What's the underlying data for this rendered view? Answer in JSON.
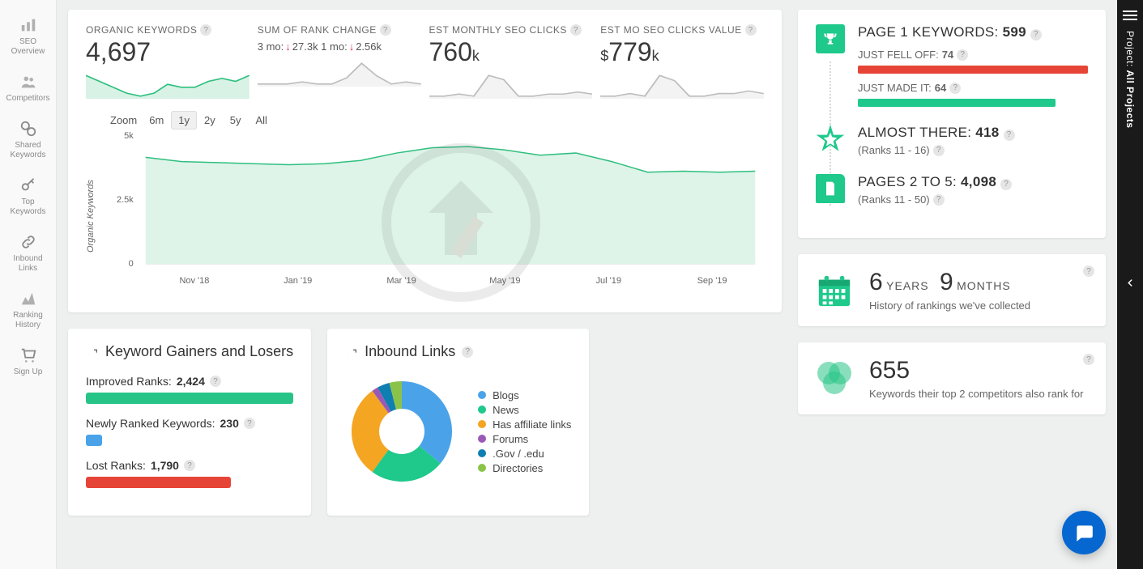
{
  "sidebar_left": {
    "items": [
      {
        "label": "SEO Overview",
        "icon": "bars"
      },
      {
        "label": "Competitors",
        "icon": "people"
      },
      {
        "label": "Shared Keywords",
        "icon": "link2"
      },
      {
        "label": "Top Keywords",
        "icon": "key"
      },
      {
        "label": "Inbound Links",
        "icon": "chain"
      },
      {
        "label": "Ranking History",
        "icon": "history"
      },
      {
        "label": "Sign Up",
        "icon": "cart"
      }
    ]
  },
  "sidebar_right": {
    "label_prefix": "Project: ",
    "label_bold": "All Projects"
  },
  "metrics": [
    {
      "label": "ORGANIC KEYWORDS",
      "value": "4,697",
      "spark": {
        "points": [
          18,
          16,
          14,
          12,
          11,
          12,
          15,
          14,
          14,
          16,
          17,
          16,
          18
        ],
        "color": "#2fbf7e",
        "fill": "#d8f2e6"
      }
    },
    {
      "label": "SUM OF RANK CHANGE",
      "sub_html": [
        "3 mo: ",
        "↓",
        "27.3k",
        " 1 mo: ",
        "↓",
        "2.56k"
      ],
      "spark": {
        "points": [
          14,
          14,
          14,
          15,
          14,
          14,
          17,
          24,
          18,
          14,
          15,
          14
        ],
        "color": "#bdbdbd",
        "fill": "#f3f3f3"
      }
    },
    {
      "label": "EST MONTHLY SEO CLICKS",
      "value_prefix": "",
      "value": "760",
      "value_suffix": "k",
      "spark": {
        "points": [
          14,
          14,
          15,
          14,
          24,
          22,
          14,
          14,
          15,
          15,
          16,
          15
        ],
        "color": "#bdbdbd",
        "fill": "#f3f3f3"
      }
    },
    {
      "label": "EST MO SEO CLICKS VALUE",
      "value_prefix": "$",
      "value": "779",
      "value_suffix": "k",
      "spark": {
        "points": [
          14,
          14,
          15,
          14,
          22,
          20,
          14,
          14,
          15,
          15,
          16,
          15
        ],
        "color": "#bdbdbd",
        "fill": "#f3f3f3"
      }
    }
  ],
  "zoom": {
    "label": "Zoom",
    "options": [
      "6m",
      "1y",
      "2y",
      "5y",
      "All"
    ],
    "active": "1y"
  },
  "main_chart": {
    "ylabel": "Organic Keywords",
    "yticks": [
      "5k",
      "2.5k",
      "0"
    ],
    "xticks": [
      "Nov '18",
      "Jan '19",
      "Mar '19",
      "May '19",
      "Jul '19",
      "Sep '19"
    ],
    "series": {
      "points": [
        5000,
        4800,
        4750,
        4700,
        4650,
        4700,
        4850,
        5200,
        5450,
        5500,
        5350,
        5100,
        5200,
        4800,
        4300,
        4350,
        4300,
        4350
      ],
      "ymax": 6000,
      "color": "#2fbf7e",
      "fill": "#def4e9"
    }
  },
  "gainers": {
    "title": "Keyword Gainers and Losers",
    "rows": [
      {
        "label": "Improved Ranks:",
        "value": "2,424",
        "color": "#28c487",
        "width_pct": 100
      },
      {
        "label": "Newly Ranked Keywords:",
        "value": "230",
        "color": "#4aa3e9",
        "width_pct": 8
      },
      {
        "label": "Lost Ranks:",
        "value": "1,790",
        "color": "#e74438",
        "width_pct": 70
      }
    ]
  },
  "inbound": {
    "title": "Inbound Links",
    "donut": {
      "slices": [
        {
          "label": "Blogs",
          "value": 36,
          "color": "#4aa3e9"
        },
        {
          "label": "News",
          "value": 24,
          "color": "#1ec98b"
        },
        {
          "label": "Has affiliate links",
          "value": 30,
          "color": "#f4a522"
        },
        {
          "label": "Forums",
          "value": 2,
          "color": "#9b59b6"
        },
        {
          "label": ".Gov / .edu",
          "value": 4,
          "color": "#0f7eb0"
        },
        {
          "label": "Directories",
          "value": 4,
          "color": "#8bc34a"
        }
      ],
      "inner_radius": 28,
      "outer_radius": 62
    }
  },
  "page1": {
    "rows": [
      {
        "badge_color": "#1ec98b",
        "icon": "trophy",
        "title_label": "PAGE 1 KEYWORDS: ",
        "title_value": "599",
        "subs": [
          {
            "label": "JUST FELL OFF:",
            "value": "74",
            "bar_color": "#e74438",
            "bar_pct": 100
          },
          {
            "label": "JUST MADE IT:",
            "value": "64",
            "bar_color": "#1ec98b",
            "bar_pct": 86
          }
        ]
      },
      {
        "badge_color": "#1ec98b",
        "icon": "star",
        "title_label": "ALMOST THERE: ",
        "title_value": "418",
        "note": "(Ranks 11 - 16)"
      },
      {
        "badge_color": "#1ec98b",
        "icon": "page",
        "title_label": "PAGES 2 TO 5: ",
        "title_value": "4,098",
        "note": "(Ranks 11 - 50)"
      }
    ]
  },
  "history": {
    "years": "6",
    "years_unit": "YEARS",
    "months": "9",
    "months_unit": "MONTHS",
    "sub": "History of rankings we've collected",
    "icon_color": "#1ec98b"
  },
  "competitors": {
    "value": "655",
    "sub": "Keywords their top 2 competitors also rank for"
  }
}
